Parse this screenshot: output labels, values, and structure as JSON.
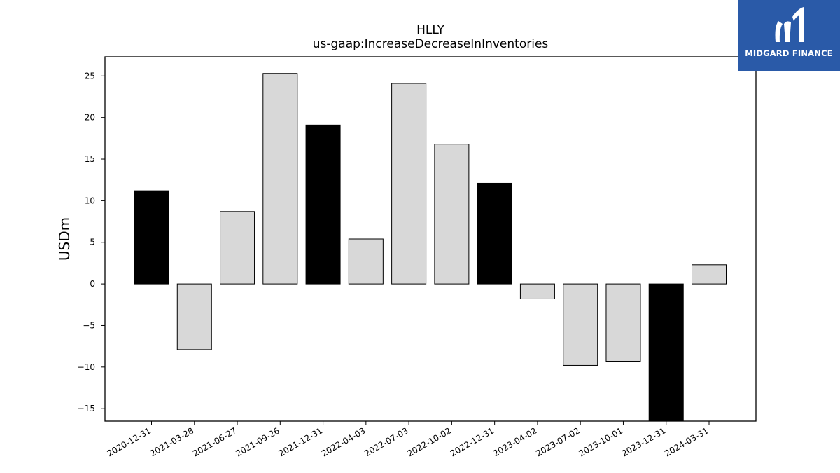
{
  "brand": {
    "name": "MIDGARD FINANCE",
    "background": "#2a5aa8",
    "icon": "midgard-logo-icon"
  },
  "chart_data": {
    "type": "bar",
    "title": "HLLY",
    "subtitle": "us-gaap:IncreaseDecreaseInInventories",
    "xlabel": "",
    "ylabel": "USDm",
    "ylim": [
      -16.5,
      27.3
    ],
    "yticks": [
      25,
      20,
      15,
      10,
      5,
      0,
      -5,
      -10,
      -15
    ],
    "ytick_labels": [
      "25",
      "20",
      "15",
      "10",
      "5",
      "0",
      "−5",
      "−10",
      "−15"
    ],
    "grid": false,
    "categories": [
      "2020-12-31",
      "2021-03-28",
      "2021-06-27",
      "2021-09-26",
      "2021-12-31",
      "2022-04-03",
      "2022-07-03",
      "2022-10-02",
      "2022-12-31",
      "2023-04-02",
      "2023-07-02",
      "2023-10-01",
      "2023-12-31",
      "2024-03-31"
    ],
    "values": [
      11.2,
      -7.9,
      8.7,
      25.3,
      19.1,
      5.4,
      24.1,
      16.8,
      12.1,
      -1.8,
      -9.8,
      -9.3,
      -16.5,
      2.3
    ],
    "colors": [
      "#000000",
      "#d8d8d8",
      "#d8d8d8",
      "#d8d8d8",
      "#000000",
      "#d8d8d8",
      "#d8d8d8",
      "#d8d8d8",
      "#000000",
      "#d8d8d8",
      "#d8d8d8",
      "#d8d8d8",
      "#000000",
      "#d8d8d8"
    ]
  }
}
